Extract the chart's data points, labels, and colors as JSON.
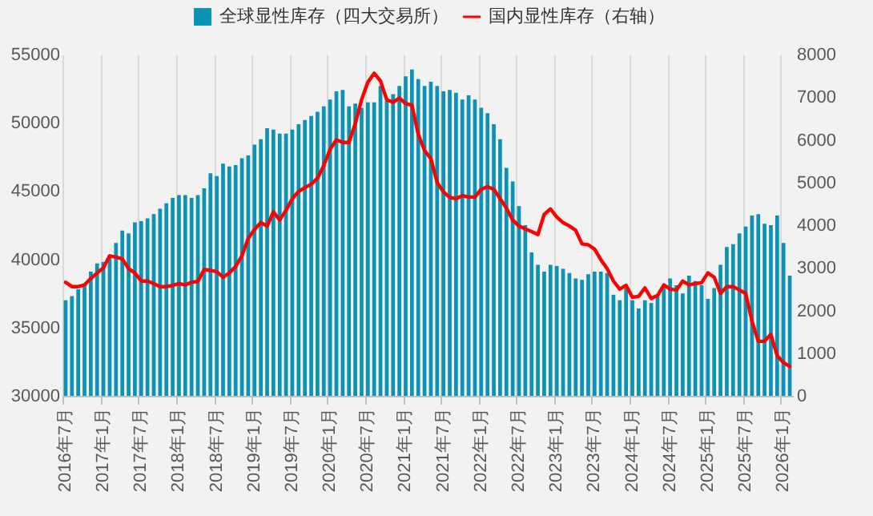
{
  "chart_data": {
    "type": "bar",
    "categories": [
      "2016年7月",
      null,
      null,
      null,
      null,
      null,
      "2017年1月",
      null,
      null,
      null,
      null,
      null,
      "2017年7月",
      null,
      null,
      null,
      null,
      null,
      "2018年1月",
      null,
      null,
      null,
      null,
      null,
      "2018年7月",
      null,
      null,
      null,
      null,
      null,
      "2019年1月",
      null,
      null,
      null,
      null,
      null,
      "2019年7月",
      null,
      null,
      null,
      null,
      null,
      "2020年1月",
      null,
      null,
      null,
      null,
      null,
      "2020年7月",
      null,
      null,
      null,
      null,
      null,
      "2021年1月",
      null,
      null,
      null,
      null,
      null,
      "2021年7月",
      null,
      null,
      null,
      null,
      null,
      "2022年1月",
      null,
      null,
      null,
      null,
      null,
      "2022年7月",
      null,
      null,
      null,
      null,
      null,
      "2023年1月",
      null,
      null,
      null,
      null,
      null,
      "2023年7月",
      null,
      null,
      null,
      null,
      null,
      "2024年1月",
      null,
      null,
      null,
      null,
      null,
      "2024年7月",
      null,
      null,
      null,
      null,
      null,
      "2025年1月",
      null,
      null,
      null,
      null,
      null,
      "2025年7月",
      null,
      null,
      null,
      null,
      null,
      "2026年1月",
      null
    ],
    "series": [
      {
        "name": "全球显性库存（四大交易所）",
        "color": "#0a93b5",
        "values": [
          37000,
          37300,
          37800,
          38200,
          39100,
          39700,
          39800,
          40300,
          41200,
          42100,
          41900,
          42700,
          42800,
          43000,
          43300,
          43700,
          44100,
          44500,
          44700,
          44700,
          44500,
          44700,
          45200,
          46300,
          46100,
          47000,
          46800,
          46900,
          47400,
          47600,
          48400,
          48800,
          49600,
          49500,
          49200,
          49200,
          49500,
          49900,
          50200,
          50500,
          50800,
          51200,
          51700,
          52300,
          52400,
          51200,
          51400,
          51100,
          51500,
          51500,
          52700,
          51600,
          52100,
          52700,
          53400,
          53900,
          53200,
          52700,
          53000,
          52700,
          52300,
          52400,
          52200,
          51700,
          52000,
          51700,
          51100,
          50700,
          49900,
          48800,
          46700,
          45700,
          43900,
          42500,
          40500,
          39600,
          39100,
          39600,
          39500,
          39300,
          39000,
          38600,
          38500,
          38900,
          39100,
          39100,
          39000,
          37400,
          37000,
          37900,
          37000,
          36400,
          37000,
          36800,
          37400,
          38000,
          38600,
          38100,
          37500,
          38800,
          38400,
          38100,
          37100,
          37900,
          39600,
          40900,
          41100,
          41900,
          42400,
          43200,
          43300,
          42600,
          42500,
          43200,
          41200,
          38800
        ]
      },
      {
        "name": "国内显性库存（右轴）",
        "type": "line",
        "axis": "y2",
        "color": "#ff0000",
        "values": [
          2660,
          2560,
          2560,
          2600,
          2750,
          2880,
          3000,
          3280,
          3250,
          3210,
          2980,
          2880,
          2690,
          2690,
          2630,
          2560,
          2560,
          2590,
          2630,
          2600,
          2660,
          2680,
          2960,
          2940,
          2910,
          2780,
          2880,
          3030,
          3280,
          3690,
          3900,
          4060,
          3980,
          4310,
          4120,
          4350,
          4620,
          4790,
          4880,
          4960,
          5100,
          5400,
          5780,
          6000,
          5940,
          5940,
          6380,
          6940,
          7350,
          7560,
          7380,
          6940,
          6880,
          6980,
          6850,
          6810,
          6130,
          5750,
          5560,
          5000,
          4780,
          4650,
          4620,
          4690,
          4660,
          4660,
          4840,
          4900,
          4840,
          4620,
          4400,
          4120,
          3980,
          3910,
          3850,
          3780,
          4250,
          4380,
          4190,
          4060,
          3980,
          3880,
          3560,
          3540,
          3440,
          3190,
          2980,
          2690,
          2500,
          2590,
          2310,
          2330,
          2530,
          2280,
          2350,
          2600,
          2500,
          2480,
          2690,
          2600,
          2630,
          2650,
          2880,
          2780,
          2400,
          2560,
          2560,
          2480,
          2400,
          1750,
          1280,
          1280,
          1440,
          940,
          780,
          690
        ]
      }
    ],
    "ylim": [
      30000,
      55000
    ],
    "yticks": [
      30000,
      35000,
      40000,
      45000,
      50000,
      55000
    ],
    "y2lim": [
      0,
      8000
    ],
    "y2ticks": [
      0,
      1000,
      2000,
      3000,
      4000,
      5000,
      6000,
      7000,
      8000
    ],
    "grid": "x",
    "legend": "top"
  }
}
